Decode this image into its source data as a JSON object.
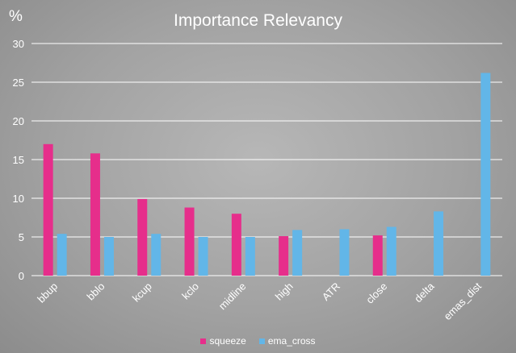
{
  "chart_data": {
    "type": "bar",
    "title": "Importance Relevancy",
    "y_unit": "%",
    "categories": [
      "bbup",
      "bblo",
      "kcup",
      "kclo",
      "midline",
      "high",
      "ATR",
      "close",
      "delta",
      "emas_dist"
    ],
    "series": [
      {
        "name": "squeeze",
        "color": "#e62e8b",
        "values": [
          17.0,
          15.8,
          9.9,
          8.8,
          8.0,
          5.1,
          0,
          5.2,
          0,
          0
        ]
      },
      {
        "name": "ema_cross",
        "color": "#62b6e8",
        "values": [
          5.4,
          5.0,
          5.4,
          5.0,
          5.0,
          5.9,
          6.0,
          6.3,
          8.3,
          26.2
        ]
      }
    ],
    "ylim": [
      0,
      30
    ],
    "yticks": [
      0,
      5,
      10,
      15,
      20,
      25,
      30
    ],
    "grid": true,
    "legend_position": "bottom"
  }
}
